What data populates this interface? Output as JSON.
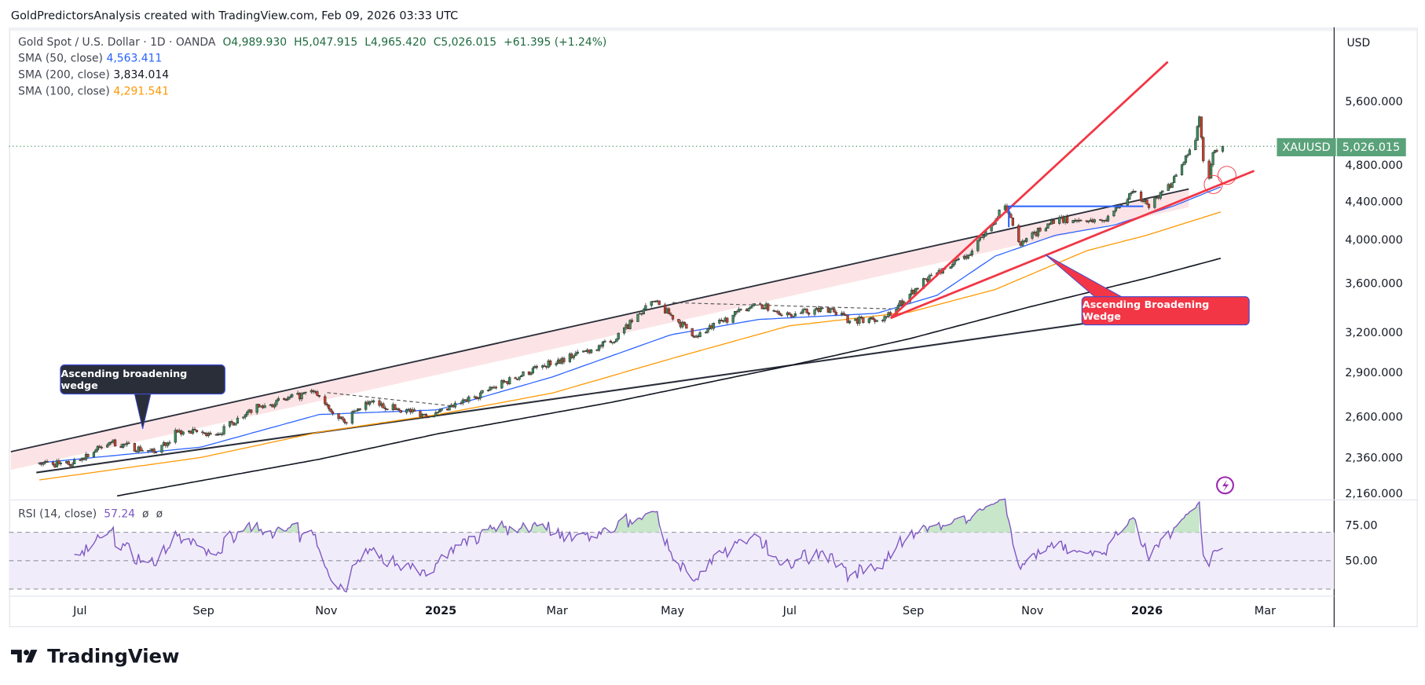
{
  "credit": "GoldPredictorsAnalysis created with TradingView.com, Feb 09, 2026 03:33 UTC",
  "legend": {
    "symbol": "Gold Spot / U.S. Dollar · 1D · OANDA",
    "open": "O4,989.930",
    "high": "H5,047.915",
    "low": "L4,965.420",
    "close": "C5,026.015",
    "change": "+61.395 (+1.24%)",
    "sma50_label": "SMA (50, close)",
    "sma50_value": "4,563.411",
    "sma200_label": "SMA (200, close)",
    "sma200_value": "3,834.014",
    "sma100_label": "SMA (100, close)",
    "sma100_value": "4,291.541"
  },
  "currency": "USD",
  "price_tag": {
    "symbol": "XAUUSD",
    "price": "5,026.015"
  },
  "annotations": {
    "left": "Ascending broadening wedge",
    "right": "Ascending Broadening Wedge"
  },
  "rsi": {
    "label": "RSI (14, close)",
    "value": "57.24",
    "na1": "ø",
    "na2": "ø",
    "ticks": [
      "75.00",
      "50.00"
    ]
  },
  "logo": "TradingView",
  "colors": {
    "up": "#3d8c5c",
    "down": "#c4432f",
    "sma50": "#2962ff",
    "sma100": "#ff9800",
    "sma200": "#131722",
    "rsi": "#7e57c2",
    "wedge": "#f23645",
    "channel": "#fce4e6"
  },
  "chart_data": {
    "type": "candlestick",
    "title": "Gold Spot / U.S. Dollar · 1D · OANDA",
    "scale": "log",
    "ylim": [
      2100,
      6000
    ],
    "y_ticks": [
      "5,600.000",
      "4,800.000",
      "4,400.000",
      "4,000.000",
      "3,600.000",
      "3,200.000",
      "2,900.000",
      "2,600.000",
      "2,360.000",
      "2,160.000"
    ],
    "x_ticks": [
      "Jul",
      "Sep",
      "Nov",
      "2025",
      "Mar",
      "May",
      "Jul",
      "Sep",
      "Nov",
      "2026",
      "Mar"
    ],
    "close_keypoints": {
      "x": [
        "2024-06-10",
        "2024-06-25",
        "2024-07-17",
        "2024-08-08",
        "2024-08-20",
        "2024-09-10",
        "2024-09-26",
        "2024-10-30",
        "2024-11-14",
        "2024-11-25",
        "2024-12-30",
        "2025-01-30",
        "2025-02-24",
        "2025-03-31",
        "2025-04-22",
        "2025-05-14",
        "2025-06-13",
        "2025-07-01",
        "2025-07-23",
        "2025-08-01",
        "2025-08-20",
        "2025-09-09",
        "2025-10-01",
        "2025-10-20",
        "2025-10-28",
        "2025-11-13",
        "2025-12-10",
        "2025-12-26",
        "2026-01-02",
        "2026-01-14",
        "2026-01-26",
        "2026-01-28",
        "2026-01-30",
        "2026-02-02",
        "2026-02-04",
        "2026-02-06",
        "2026-02-09"
      ],
      "y": [
        2330,
        2320,
        2450,
        2390,
        2510,
        2500,
        2650,
        2770,
        2570,
        2700,
        2610,
        2800,
        2950,
        3120,
        3450,
        3170,
        3430,
        3340,
        3390,
        3290,
        3320,
        3640,
        3860,
        4350,
        3950,
        4200,
        4200,
        4500,
        4330,
        4600,
        5100,
        5400,
        4850,
        4650,
        4950,
        4965,
        5026
      ]
    },
    "series": [
      {
        "name": "SMA (50, close)",
        "x": [
          "2024-06-10",
          "2024-09-01",
          "2024-11-01",
          "2025-01-01",
          "2025-03-01",
          "2025-05-01",
          "2025-06-15",
          "2025-08-15",
          "2025-09-15",
          "2025-10-15",
          "2025-11-15",
          "2025-12-15",
          "2026-01-15",
          "2026-02-09"
        ],
        "y": [
          2330,
          2420,
          2620,
          2650,
          2870,
          3180,
          3300,
          3350,
          3500,
          3850,
          4050,
          4150,
          4350,
          4563.411
        ]
      },
      {
        "name": "SMA (100, close)",
        "x": [
          "2024-06-10",
          "2024-09-01",
          "2024-11-01",
          "2025-01-01",
          "2025-03-01",
          "2025-05-01",
          "2025-07-01",
          "2025-09-01",
          "2025-10-15",
          "2025-12-01",
          "2026-01-01",
          "2026-02-09"
        ],
        "y": [
          2235,
          2360,
          2510,
          2620,
          2760,
          3000,
          3250,
          3360,
          3550,
          3900,
          4050,
          4291.541
        ]
      },
      {
        "name": "SMA (200, close)",
        "x": [
          "2024-07-20",
          "2024-11-01",
          "2025-01-01",
          "2025-04-01",
          "2025-07-01",
          "2025-09-01",
          "2025-11-01",
          "2026-01-01",
          "2026-02-09"
        ],
        "y": [
          2150,
          2350,
          2500,
          2700,
          2950,
          3150,
          3400,
          3650,
          3834.014
        ]
      }
    ],
    "rsi": {
      "period": 14,
      "last": 57.24,
      "levels": [
        70,
        50,
        30
      ]
    }
  }
}
